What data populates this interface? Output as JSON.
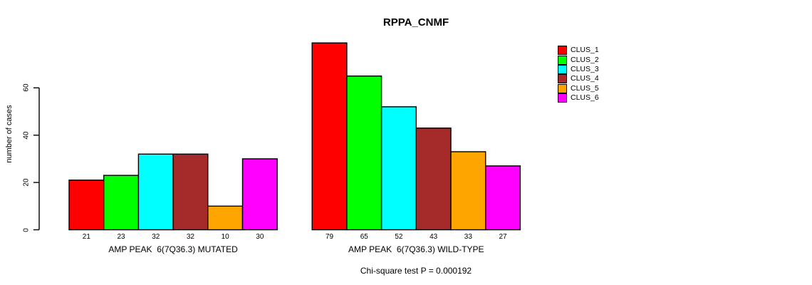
{
  "chart_data": {
    "type": "bar",
    "title": "RPPA_CNMF",
    "ylabel": "number of cases",
    "xlabel": "",
    "yticks": [
      0,
      20,
      40,
      60
    ],
    "ylim": [
      0,
      79
    ],
    "grid": false,
    "legend_position": "right-inside",
    "background_color": "#FFFFFF",
    "axis_color": "#000000",
    "categories": [
      "AMP PEAK  6(7Q36.3) MUTATED",
      "AMP PEAK  6(7Q36.3) WILD-TYPE"
    ],
    "series": [
      {
        "name": "CLUS_1",
        "color": "#FF0000",
        "values": [
          21,
          79
        ]
      },
      {
        "name": "CLUS_2",
        "color": "#00FF00",
        "values": [
          23,
          65
        ]
      },
      {
        "name": "CLUS_3",
        "color": "#00FFFF",
        "values": [
          32,
          52
        ]
      },
      {
        "name": "CLUS_4",
        "color": "#A52A2A",
        "values": [
          32,
          43
        ]
      },
      {
        "name": "CLUS_5",
        "color": "#FFA500",
        "values": [
          10,
          33
        ]
      },
      {
        "name": "CLUS_6",
        "color": "#FF00FF",
        "values": [
          30,
          27
        ]
      }
    ],
    "bar_value_labels": {
      "mutated": [
        21,
        23,
        32,
        32,
        10,
        30
      ],
      "wild_type": [
        79,
        65,
        52,
        43,
        33,
        27
      ]
    },
    "footnote": "Chi-square test P = 0.000192"
  }
}
